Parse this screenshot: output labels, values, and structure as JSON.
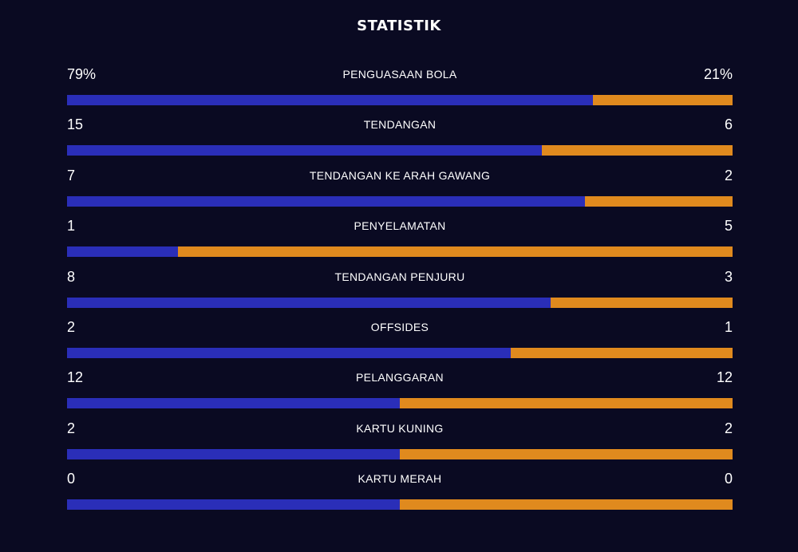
{
  "title": "STATISTIK",
  "colors": {
    "home": "#2a2eb8",
    "away": "#e08a1e",
    "background": "#0a0a22"
  },
  "stats": [
    {
      "label": "PENGUASAAN BOLA",
      "home": "79%",
      "away": "21%",
      "home_share": 0.79
    },
    {
      "label": "TENDANGAN",
      "home": "15",
      "away": "6",
      "home_share": 0.714
    },
    {
      "label": "TENDANGAN KE ARAH GAWANG",
      "home": "7",
      "away": "2",
      "home_share": 0.778
    },
    {
      "label": "PENYELAMATAN",
      "home": "1",
      "away": "5",
      "home_share": 0.167
    },
    {
      "label": "TENDANGAN PENJURU",
      "home": "8",
      "away": "3",
      "home_share": 0.727
    },
    {
      "label": "OFFSIDES",
      "home": "2",
      "away": "1",
      "home_share": 0.667
    },
    {
      "label": "PELANGGARAN",
      "home": "12",
      "away": "12",
      "home_share": 0.5
    },
    {
      "label": "KARTU KUNING",
      "home": "2",
      "away": "2",
      "home_share": 0.5
    },
    {
      "label": "KARTU MERAH",
      "home": "0",
      "away": "0",
      "home_share": 0.5
    }
  ]
}
